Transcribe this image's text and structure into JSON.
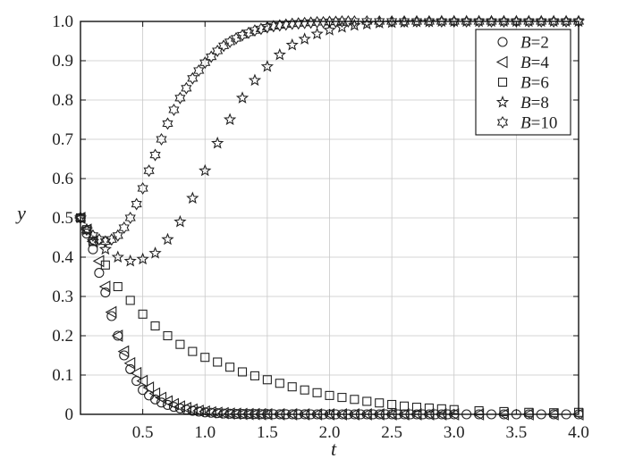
{
  "chart_data": {
    "type": "scatter",
    "title": "",
    "xlabel": "t",
    "ylabel": "y",
    "xlim": [
      0,
      4
    ],
    "ylim": [
      0,
      1
    ],
    "x_ticks": [
      "0.5",
      "1.0",
      "1.5",
      "2.0",
      "2.5",
      "3.0",
      "3.5",
      "4.0"
    ],
    "y_ticks": [
      "0",
      "0.1",
      "0.2",
      "0.3",
      "0.4",
      "0.5",
      "0.6",
      "0.7",
      "0.8",
      "0.9",
      "1.0"
    ],
    "grid": true,
    "legend_position": "top-right",
    "series": [
      {
        "name": "B=2",
        "name_var": "B",
        "name_val": "=2",
        "marker": "circle",
        "x": [
          0.0,
          0.05,
          0.1,
          0.15,
          0.2,
          0.25,
          0.3,
          0.35,
          0.4,
          0.45,
          0.5,
          0.55,
          0.6,
          0.65,
          0.7,
          0.75,
          0.8,
          0.85,
          0.9,
          0.95,
          1.0,
          1.05,
          1.1,
          1.15,
          1.2,
          1.25,
          1.3,
          1.35,
          1.4,
          1.45,
          1.5,
          1.55,
          1.6,
          1.65,
          1.7,
          1.75,
          1.8,
          1.85,
          1.9,
          1.95,
          2.0,
          2.05,
          2.1,
          2.15,
          2.2,
          2.25,
          2.3,
          2.35,
          2.4,
          2.45,
          2.5,
          2.55,
          2.6,
          2.65,
          2.7,
          2.75,
          2.8,
          2.85,
          2.9,
          2.95,
          3.0,
          3.1,
          3.2,
          3.3,
          3.4,
          3.5,
          3.6,
          3.7,
          3.8,
          3.9,
          4.0
        ],
        "y": [
          0.5,
          0.46,
          0.42,
          0.36,
          0.31,
          0.25,
          0.2,
          0.15,
          0.115,
          0.085,
          0.062,
          0.048,
          0.038,
          0.03,
          0.024,
          0.019,
          0.015,
          0.012,
          0.009,
          0.007,
          0.005,
          0.004,
          0.003,
          0.002,
          0.0015,
          0.001,
          0.001,
          0.0008,
          0.0006,
          0.0005,
          0.0004,
          0.0003,
          0.0002,
          0.0002,
          0.0001,
          0.0001,
          0.0001,
          0,
          0,
          0,
          0,
          0,
          0,
          0,
          0,
          0,
          0,
          0,
          0,
          0,
          0,
          0,
          0,
          0,
          0,
          0,
          0,
          0,
          0,
          0,
          0,
          0,
          0,
          0,
          0,
          0,
          0,
          0,
          0,
          0,
          0
        ]
      },
      {
        "name": "B=4",
        "name_var": "B",
        "name_val": "=4",
        "marker": "triangle-left",
        "x": [
          0.0,
          0.05,
          0.1,
          0.15,
          0.2,
          0.25,
          0.3,
          0.35,
          0.4,
          0.45,
          0.5,
          0.55,
          0.6,
          0.65,
          0.7,
          0.75,
          0.8,
          0.85,
          0.9,
          0.95,
          1.0,
          1.05,
          1.1,
          1.15,
          1.2,
          1.25,
          1.3,
          1.35,
          1.4,
          1.45,
          1.5,
          1.6,
          1.7,
          1.8,
          1.9,
          2.0,
          2.1,
          2.2,
          2.3,
          2.4,
          2.5,
          2.6,
          2.7,
          2.8,
          2.9,
          3.0,
          3.2,
          3.4,
          3.6,
          3.8,
          4.0
        ],
        "y": [
          0.5,
          0.47,
          0.44,
          0.39,
          0.325,
          0.26,
          0.2,
          0.16,
          0.13,
          0.105,
          0.085,
          0.068,
          0.053,
          0.042,
          0.033,
          0.026,
          0.02,
          0.016,
          0.012,
          0.009,
          0.007,
          0.005,
          0.004,
          0.003,
          0.002,
          0.0015,
          0.001,
          0.0008,
          0.0006,
          0.0004,
          0.0003,
          0.0002,
          0.0001,
          0,
          0,
          0,
          0,
          0,
          0,
          0,
          0,
          0,
          0,
          0,
          0,
          0,
          0,
          0,
          0,
          0,
          0
        ]
      },
      {
        "name": "B=6",
        "name_var": "B",
        "name_val": "=6",
        "marker": "square",
        "x": [
          0.0,
          0.05,
          0.1,
          0.2,
          0.3,
          0.4,
          0.5,
          0.6,
          0.7,
          0.8,
          0.9,
          1.0,
          1.1,
          1.2,
          1.3,
          1.4,
          1.5,
          1.6,
          1.7,
          1.8,
          1.9,
          2.0,
          2.1,
          2.2,
          2.3,
          2.4,
          2.5,
          2.6,
          2.7,
          2.8,
          2.9,
          3.0,
          3.2,
          3.4,
          3.6,
          3.8,
          4.0
        ],
        "y": [
          0.5,
          0.47,
          0.44,
          0.38,
          0.325,
          0.29,
          0.255,
          0.225,
          0.2,
          0.178,
          0.16,
          0.145,
          0.133,
          0.12,
          0.108,
          0.098,
          0.088,
          0.079,
          0.07,
          0.062,
          0.055,
          0.048,
          0.043,
          0.038,
          0.033,
          0.029,
          0.025,
          0.021,
          0.018,
          0.016,
          0.014,
          0.012,
          0.009,
          0.007,
          0.005,
          0.004,
          0.005
        ]
      },
      {
        "name": "B=8",
        "name_var": "B",
        "name_val": "=8",
        "marker": "star",
        "x": [
          0.0,
          0.05,
          0.1,
          0.2,
          0.3,
          0.4,
          0.5,
          0.6,
          0.7,
          0.8,
          0.9,
          1.0,
          1.1,
          1.2,
          1.3,
          1.4,
          1.5,
          1.6,
          1.7,
          1.8,
          1.9,
          2.0,
          2.1,
          2.2,
          2.3,
          2.4,
          2.5,
          2.6,
          2.7,
          2.8,
          2.9,
          3.0,
          3.1,
          3.2,
          3.3,
          3.4,
          3.5,
          3.6,
          3.7,
          3.8,
          3.9,
          4.0
        ],
        "y": [
          0.5,
          0.47,
          0.44,
          0.42,
          0.4,
          0.39,
          0.395,
          0.41,
          0.445,
          0.49,
          0.55,
          0.62,
          0.69,
          0.75,
          0.805,
          0.85,
          0.885,
          0.915,
          0.94,
          0.955,
          0.968,
          0.978,
          0.985,
          0.99,
          0.993,
          0.996,
          0.997,
          0.998,
          0.999,
          0.999,
          1.0,
          1.0,
          1.0,
          1.0,
          1.0,
          1.0,
          1.0,
          1.0,
          1.0,
          1.0,
          1.0,
          1.0
        ]
      },
      {
        "name": "B=10",
        "name_var": "B",
        "name_val": "=10",
        "marker": "hexagram",
        "x": [
          0.0,
          0.05,
          0.1,
          0.15,
          0.2,
          0.25,
          0.3,
          0.35,
          0.4,
          0.45,
          0.5,
          0.55,
          0.6,
          0.65,
          0.7,
          0.75,
          0.8,
          0.85,
          0.9,
          0.95,
          1.0,
          1.05,
          1.1,
          1.15,
          1.2,
          1.25,
          1.3,
          1.35,
          1.4,
          1.45,
          1.5,
          1.55,
          1.6,
          1.65,
          1.7,
          1.75,
          1.8,
          1.85,
          1.9,
          1.95,
          2.0,
          2.05,
          2.1,
          2.15,
          2.2,
          2.3,
          2.4,
          2.5,
          2.6,
          2.7,
          2.8,
          2.9,
          3.0,
          3.1,
          3.2,
          3.3,
          3.4,
          3.5,
          3.6,
          3.7,
          3.8,
          3.9,
          4.0
        ],
        "y": [
          0.5,
          0.47,
          0.455,
          0.445,
          0.44,
          0.445,
          0.455,
          0.475,
          0.5,
          0.535,
          0.575,
          0.62,
          0.66,
          0.7,
          0.74,
          0.775,
          0.805,
          0.83,
          0.855,
          0.875,
          0.895,
          0.91,
          0.925,
          0.938,
          0.948,
          0.957,
          0.965,
          0.971,
          0.977,
          0.981,
          0.985,
          0.988,
          0.99,
          0.992,
          0.994,
          0.995,
          0.996,
          0.997,
          0.998,
          0.998,
          0.999,
          0.999,
          1.0,
          1.0,
          1.0,
          1.0,
          1.0,
          1.0,
          1.0,
          1.0,
          1.0,
          1.0,
          1.0,
          1.0,
          1.0,
          1.0,
          1.0,
          1.0,
          1.0,
          1.0,
          1.0,
          1.0,
          1.0
        ]
      }
    ]
  }
}
